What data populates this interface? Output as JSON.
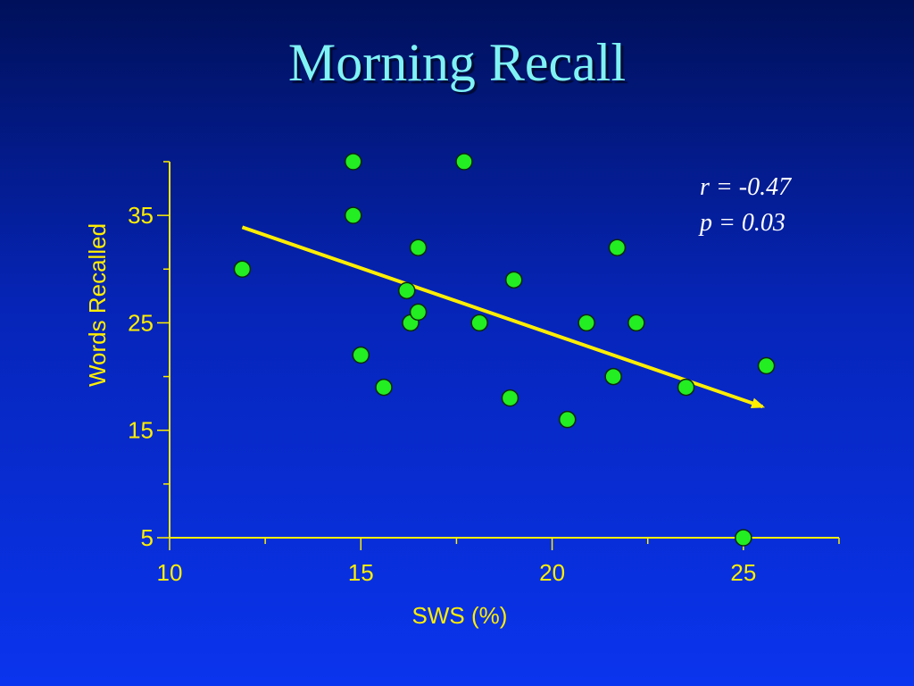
{
  "slide": {
    "title": "Morning Recall"
  },
  "colors": {
    "axis": "#ffee00",
    "point_fill": "#22ee22",
    "point_stroke": "#0b2a0b",
    "trend": "#ffee00",
    "stat_text": "#ffffff"
  },
  "chart_data": {
    "type": "scatter",
    "title": "Morning Recall",
    "xlabel": "SWS (%)",
    "ylabel": "Words Recalled",
    "xlim": [
      10,
      27.5
    ],
    "ylim": [
      5,
      40
    ],
    "xticks": [
      10,
      15,
      20,
      25
    ],
    "yticks": [
      5,
      15,
      25,
      35
    ],
    "grid": false,
    "points": [
      {
        "x": 11.9,
        "y": 30
      },
      {
        "x": 14.8,
        "y": 40
      },
      {
        "x": 14.8,
        "y": 35
      },
      {
        "x": 15.0,
        "y": 22
      },
      {
        "x": 15.6,
        "y": 19
      },
      {
        "x": 16.2,
        "y": 28
      },
      {
        "x": 16.3,
        "y": 25
      },
      {
        "x": 16.5,
        "y": 32
      },
      {
        "x": 16.5,
        "y": 26
      },
      {
        "x": 17.7,
        "y": 40
      },
      {
        "x": 18.1,
        "y": 25
      },
      {
        "x": 18.9,
        "y": 18
      },
      {
        "x": 19.0,
        "y": 29
      },
      {
        "x": 20.4,
        "y": 16
      },
      {
        "x": 20.9,
        "y": 25
      },
      {
        "x": 21.6,
        "y": 20
      },
      {
        "x": 21.7,
        "y": 32
      },
      {
        "x": 22.2,
        "y": 25
      },
      {
        "x": 23.5,
        "y": 19
      },
      {
        "x": 25.0,
        "y": 5
      },
      {
        "x": 25.6,
        "y": 21
      }
    ],
    "trendline": {
      "x1": 11.9,
      "y1": 33.9,
      "x2": 25.5,
      "y2": 17.2
    },
    "annotations": {
      "r": "r = -0.47",
      "p": "p = 0.03"
    }
  }
}
